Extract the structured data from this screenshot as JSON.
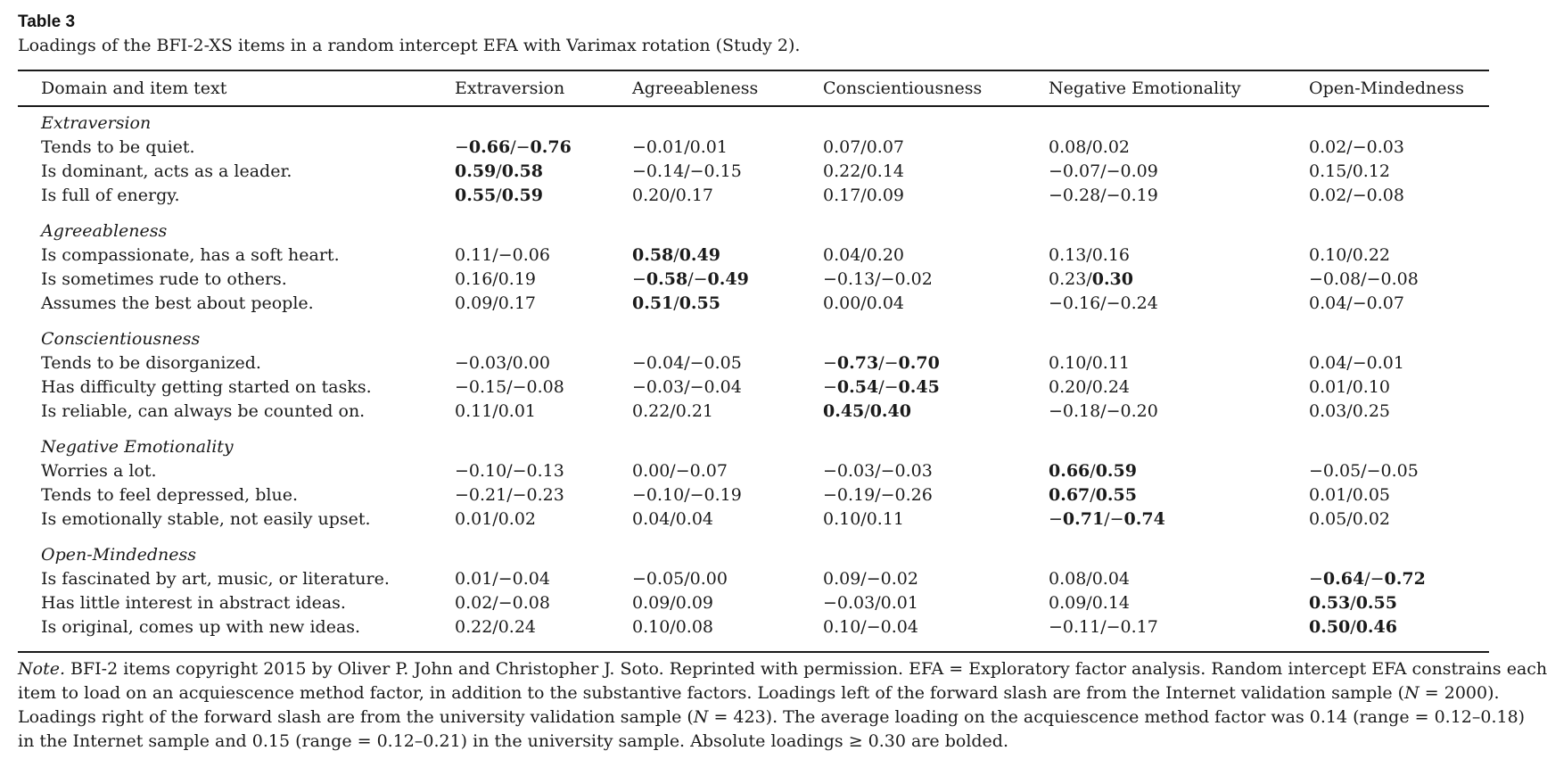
{
  "table": {
    "label": "Table 3",
    "caption": "Loadings of the BFI-2-XS items in a random intercept EFA with Varimax rotation (Study 2).",
    "headers": [
      "Domain and item text",
      "Extraversion",
      "Agreeableness",
      "Conscientiousness",
      "Negative Emotionality",
      "Open-Mindedness"
    ],
    "groups": [
      {
        "domain": "Extraversion",
        "items": [
          {
            "text": "Tends to be quiet.",
            "values": [
              [
                "−0.66/−0.76",
                true
              ],
              [
                "−0.01/0.01",
                false
              ],
              [
                "0.07/0.07",
                false
              ],
              [
                "0.08/0.02",
                false
              ],
              [
                "0.02/−0.03",
                false
              ]
            ]
          },
          {
            "text": "Is dominant, acts as a leader.",
            "values": [
              [
                "0.59/0.58",
                true
              ],
              [
                "−0.14/−0.15",
                false
              ],
              [
                "0.22/0.14",
                false
              ],
              [
                "−0.07/−0.09",
                false
              ],
              [
                "0.15/0.12",
                false
              ]
            ]
          },
          {
            "text": "Is full of energy.",
            "values": [
              [
                "0.55/0.59",
                true
              ],
              [
                "0.20/0.17",
                false
              ],
              [
                "0.17/0.09",
                false
              ],
              [
                "−0.28/−0.19",
                false
              ],
              [
                "0.02/−0.08",
                false
              ]
            ]
          }
        ]
      },
      {
        "domain": "Agreeableness",
        "items": [
          {
            "text": "Is compassionate, has a soft heart.",
            "values": [
              [
                "0.11/−0.06",
                false
              ],
              [
                "0.58/0.49",
                true
              ],
              [
                "0.04/0.20",
                false
              ],
              [
                "0.13/0.16",
                false
              ],
              [
                "0.10/0.22",
                false
              ]
            ]
          },
          {
            "text": "Is sometimes rude to others.",
            "values": [
              [
                "0.16/0.19",
                false
              ],
              [
                "−0.58/−0.49",
                true
              ],
              [
                "−0.13/−0.02",
                false
              ],
              [
                "0.23/0.30",
                "second"
              ],
              [
                "−0.08/−0.08",
                false
              ]
            ]
          },
          {
            "text": "Assumes the best about people.",
            "values": [
              [
                "0.09/0.17",
                false
              ],
              [
                "0.51/0.55",
                true
              ],
              [
                "0.00/0.04",
                false
              ],
              [
                "−0.16/−0.24",
                false
              ],
              [
                "0.04/−0.07",
                false
              ]
            ]
          }
        ]
      },
      {
        "domain": "Conscientiousness",
        "items": [
          {
            "text": "Tends to be disorganized.",
            "values": [
              [
                "−0.03/0.00",
                false
              ],
              [
                "−0.04/−0.05",
                false
              ],
              [
                "−0.73/−0.70",
                true
              ],
              [
                "0.10/0.11",
                false
              ],
              [
                "0.04/−0.01",
                false
              ]
            ]
          },
          {
            "text": "Has difficulty getting started on tasks.",
            "values": [
              [
                "−0.15/−0.08",
                false
              ],
              [
                "−0.03/−0.04",
                false
              ],
              [
                "−0.54/−0.45",
                true
              ],
              [
                "0.20/0.24",
                false
              ],
              [
                "0.01/0.10",
                false
              ]
            ]
          },
          {
            "text": "Is reliable, can always be counted on.",
            "values": [
              [
                "0.11/0.01",
                false
              ],
              [
                "0.22/0.21",
                false
              ],
              [
                "0.45/0.40",
                true
              ],
              [
                "−0.18/−0.20",
                false
              ],
              [
                "0.03/0.25",
                false
              ]
            ]
          }
        ]
      },
      {
        "domain": "Negative Emotionality",
        "items": [
          {
            "text": "Worries a lot.",
            "values": [
              [
                "−0.10/−0.13",
                false
              ],
              [
                "0.00/−0.07",
                false
              ],
              [
                "−0.03/−0.03",
                false
              ],
              [
                "0.66/0.59",
                true
              ],
              [
                "−0.05/−0.05",
                false
              ]
            ]
          },
          {
            "text": "Tends to feel depressed, blue.",
            "values": [
              [
                "−0.21/−0.23",
                false
              ],
              [
                "−0.10/−0.19",
                false
              ],
              [
                "−0.19/−0.26",
                false
              ],
              [
                "0.67/0.55",
                true
              ],
              [
                "0.01/0.05",
                false
              ]
            ]
          },
          {
            "text": "Is emotionally stable, not easily upset.",
            "values": [
              [
                "0.01/0.02",
                false
              ],
              [
                "0.04/0.04",
                false
              ],
              [
                "0.10/0.11",
                false
              ],
              [
                "−0.71/−0.74",
                true
              ],
              [
                "0.05/0.02",
                false
              ]
            ]
          }
        ]
      },
      {
        "domain": "Open-Mindedness",
        "items": [
          {
            "text": "Is fascinated by art, music, or literature.",
            "values": [
              [
                "0.01/−0.04",
                false
              ],
              [
                "−0.05/0.00",
                false
              ],
              [
                "0.09/−0.02",
                false
              ],
              [
                "0.08/0.04",
                false
              ],
              [
                "−0.64/−0.72",
                true
              ]
            ]
          },
          {
            "text": "Has little interest in abstract ideas.",
            "values": [
              [
                "0.02/−0.08",
                false
              ],
              [
                "0.09/0.09",
                false
              ],
              [
                "−0.03/0.01",
                false
              ],
              [
                "0.09/0.14",
                false
              ],
              [
                "0.53/0.55",
                true
              ]
            ]
          },
          {
            "text": "Is original, comes up with new ideas.",
            "values": [
              [
                "0.22/0.24",
                false
              ],
              [
                "0.10/0.08",
                false
              ],
              [
                "0.10/−0.04",
                false
              ],
              [
                "−0.11/−0.17",
                false
              ],
              [
                "0.50/0.46",
                true
              ]
            ]
          }
        ]
      }
    ],
    "note": {
      "label": "Note.",
      "lines": [
        " BFI-2 items copyright 2015 by Oliver P. John and Christopher J. Soto. Reprinted with permission. EFA = Exploratory factor analysis. Random intercept EFA constrains each",
        "item to load on an acquiescence method factor, in addition to the substantive factors. Loadings left of the forward slash are from the Internet validation sample (N = 2000).",
        "Loadings right of the forward slash are from the university validation sample (N = 423). The average loading on the acquiescence method factor was 0.14 (range = 0.12–0.18)",
        "in the Internet sample and 0.15 (range = 0.12–0.21) in the university sample. Absolute loadings ≥ 0.30 are bolded."
      ]
    }
  }
}
